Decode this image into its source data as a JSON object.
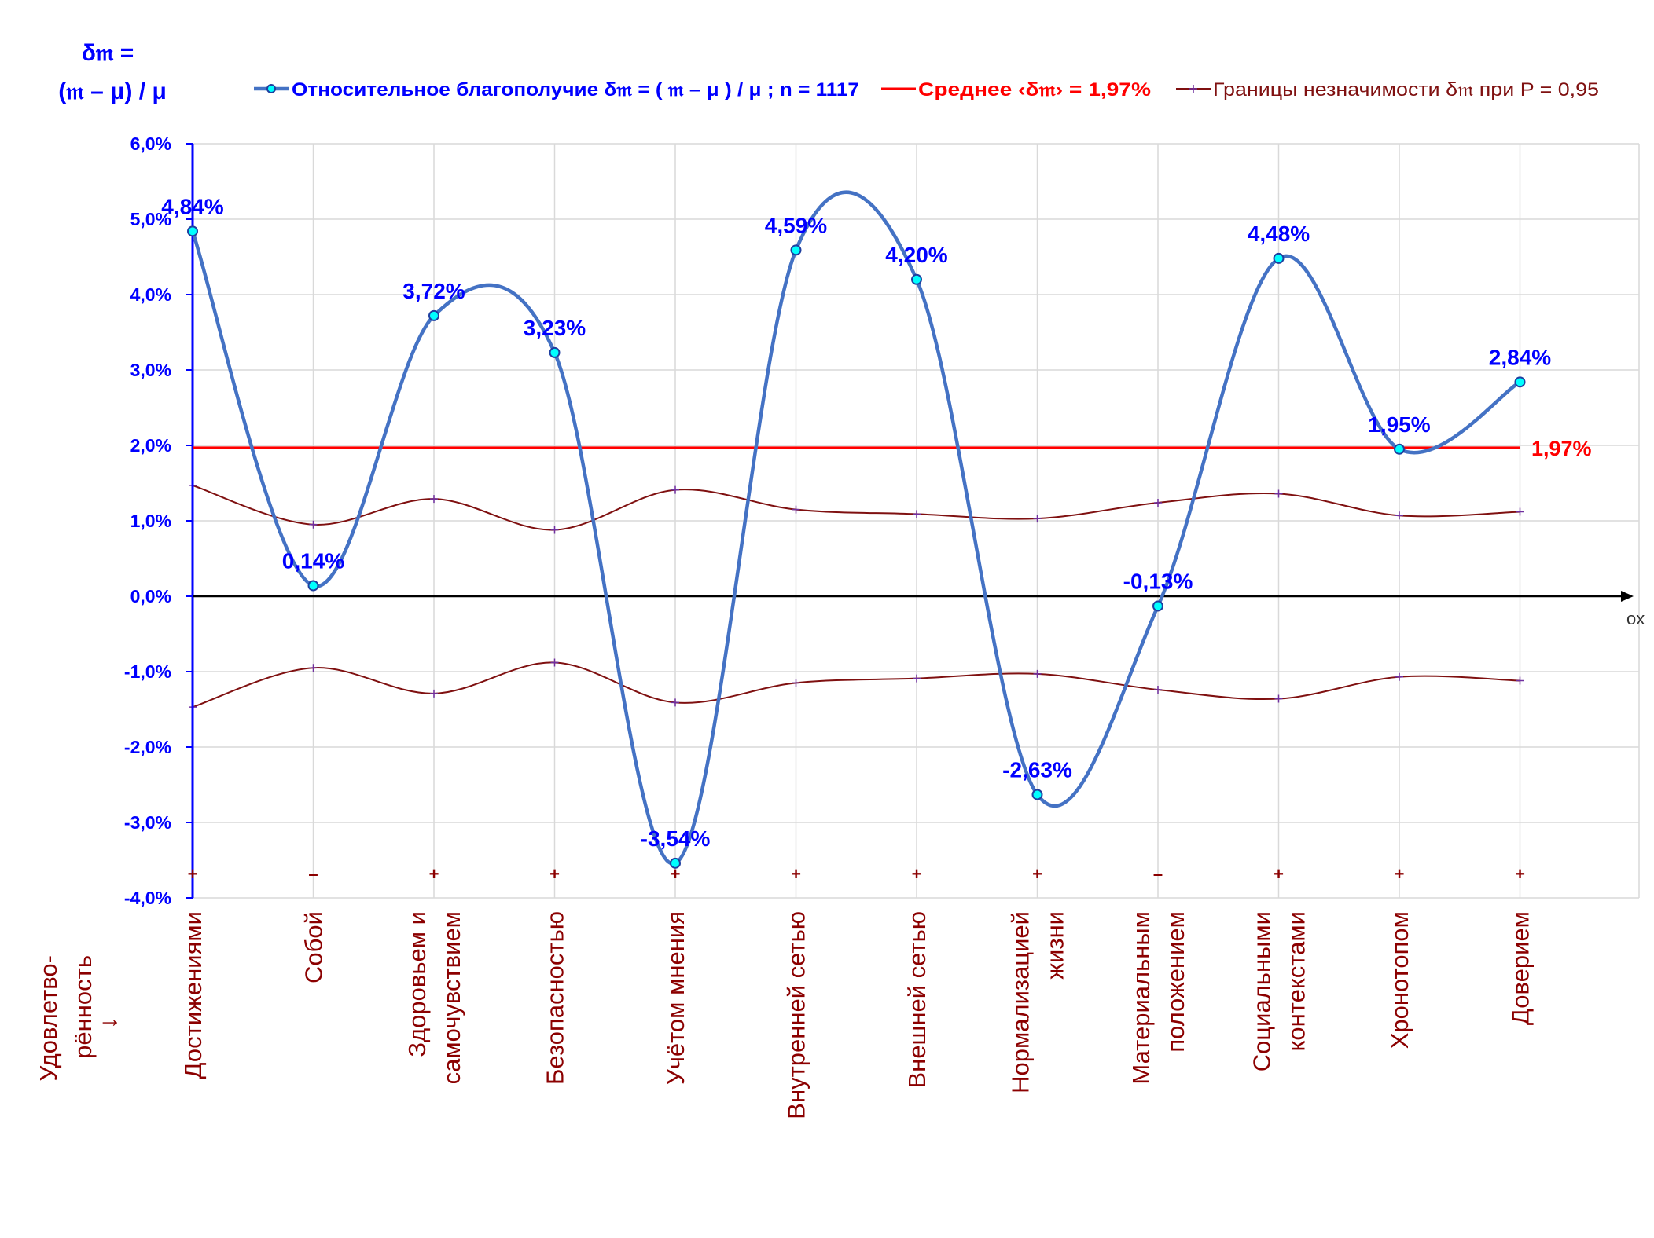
{
  "chart_data": {
    "type": "line",
    "y_axis_title_line1": "δ𝔪 =",
    "y_axis_title_line2": "(𝔪 – μ) / μ",
    "x_axis_title_lines": [
      "Удовлетво-",
      "рённость",
      "↓"
    ],
    "x_axis_end_label": "ox",
    "ylim": [
      -0.04,
      0.06
    ],
    "yticks": [
      -0.04,
      -0.03,
      -0.02,
      -0.01,
      0.0,
      0.01,
      0.02,
      0.03,
      0.04,
      0.05,
      0.06
    ],
    "ytick_labels": [
      "-4,0%",
      "-3,0%",
      "-2,0%",
      "-1,0%",
      "0,0%",
      "1,0%",
      "2,0%",
      "3,0%",
      "4,0%",
      "5,0%",
      "6,0%"
    ],
    "grid": true,
    "legend_position": "top",
    "categories": [
      [
        "Достижениями"
      ],
      [
        "Собой"
      ],
      [
        "Здоровьем и",
        "самочувствием"
      ],
      [
        "Безопасностью"
      ],
      [
        "Учётом мнения"
      ],
      [
        "Внутренней сетью"
      ],
      [
        "Внешней сетью"
      ],
      [
        "Нормализацией",
        "жизни"
      ],
      [
        "Материальным",
        "положением"
      ],
      [
        "Социальными",
        "контекстами"
      ],
      [
        "Хронотопом"
      ],
      [
        "Доверием"
      ]
    ],
    "series": [
      {
        "name": "Относительное благополучие δ𝔪 = ( 𝔪 – μ ) / μ ; n = 1117",
        "color": "#4472c4",
        "values": [
          0.0484,
          0.0014,
          0.0372,
          0.0323,
          -0.0354,
          0.0459,
          0.042,
          -0.0263,
          -0.0013,
          0.0448,
          0.0195,
          0.0284
        ],
        "labels": [
          "4,84%",
          "0,14%",
          "3,72%",
          "3,23%",
          "-3,54%",
          "4,59%",
          "4,20%",
          "-2,63%",
          "-0,13%",
          "4,48%",
          "1,95%",
          "2,84%"
        ]
      },
      {
        "name": "Среднее ‹δ𝔪› = 1,97%",
        "color": "#ff0000",
        "value": 0.0197,
        "label": "1,97%"
      },
      {
        "name": "Границы незначимости δ𝔪 при P = 0,95",
        "color": "#7f1010",
        "upper": [
          0.0147,
          0.0095,
          0.0129,
          0.0088,
          0.0141,
          0.0115,
          0.0109,
          0.0103,
          0.0124,
          0.0136,
          0.0107,
          0.0112
        ],
        "lower": [
          -0.0147,
          -0.0095,
          -0.0129,
          -0.0088,
          -0.0141,
          -0.0115,
          -0.0109,
          -0.0103,
          -0.0124,
          -0.0136,
          -0.0107,
          -0.0112
        ]
      }
    ],
    "significance_marks": [
      "+",
      "–",
      "+",
      "+",
      "+",
      "+",
      "+",
      "+",
      "–",
      "+",
      "+",
      "+"
    ]
  }
}
